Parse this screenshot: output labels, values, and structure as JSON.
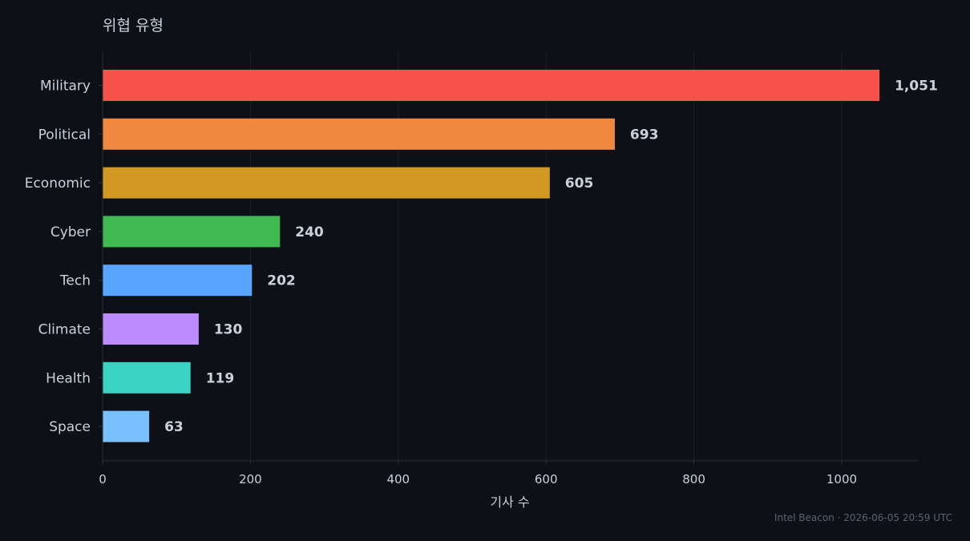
{
  "chart_data": {
    "type": "bar",
    "orientation": "horizontal",
    "title": "위협 유형",
    "xlabel": "기사 수",
    "ylabel": "",
    "categories": [
      "Military",
      "Political",
      "Economic",
      "Cyber",
      "Tech",
      "Climate",
      "Health",
      "Space"
    ],
    "values": [
      1051,
      693,
      605,
      240,
      202,
      130,
      119,
      63
    ],
    "value_labels": [
      "1,051",
      "693",
      "605",
      "240",
      "202",
      "130",
      "119",
      "63"
    ],
    "colors": [
      "#f85149",
      "#f0883e",
      "#d29922",
      "#3fb950",
      "#58a6ff",
      "#bc8cff",
      "#39d3c3",
      "#79c0ff"
    ],
    "xlim": [
      0,
      1100
    ],
    "xticks": [
      0,
      200,
      400,
      600,
      800,
      1000
    ],
    "grid": "vertical",
    "legend": "none"
  },
  "footer": "Intel Beacon · 2026-06-05 20:59 UTC",
  "theme": {
    "background": "#0d1017",
    "text": "#c9d1d9",
    "grid": "#1b1f27",
    "axis": "#2a2f38",
    "muted": "#5a6270"
  }
}
